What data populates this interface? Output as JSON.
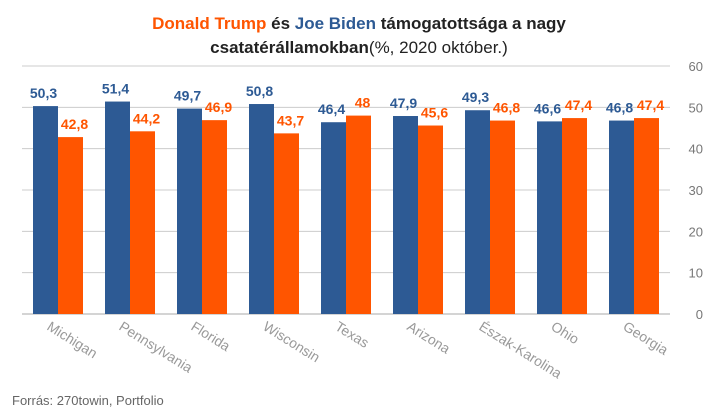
{
  "title": {
    "trump": "Donald Trump",
    "es": " és ",
    "biden": "Joe Biden",
    "rest1": " támogatottsága a nagy",
    "rest2": "csatatérállamokban",
    "rest3": "(%, 2020 október.)"
  },
  "source": "Forrás: 270towin, Portfolio",
  "colors": {
    "biden": "#2d5a94",
    "trump": "#ff5500",
    "grid": "#cccccc",
    "axis_text": "#777777",
    "category_text": "#999999"
  },
  "chart_data": {
    "type": "bar",
    "categories": [
      "Michigan",
      "Pennsylvania",
      "Florida",
      "Wisconsin",
      "Texas",
      "Arizona",
      "Észak-Karolina",
      "Ohio",
      "Georgia"
    ],
    "series": [
      {
        "name": "Joe Biden",
        "color": "#2d5a94",
        "values": [
          50.3,
          51.4,
          49.7,
          50.8,
          46.4,
          47.9,
          49.3,
          46.6,
          46.8
        ],
        "labels": [
          "50,3",
          "51,4",
          "49,7",
          "50,8",
          "46,4",
          "47,9",
          "49,3",
          "46,6",
          "46,8"
        ]
      },
      {
        "name": "Donald Trump",
        "color": "#ff5500",
        "values": [
          42.8,
          44.2,
          46.9,
          43.7,
          48,
          45.6,
          46.8,
          47.4,
          47.4
        ],
        "labels": [
          "42,8",
          "44,2",
          "46,9",
          "43,7",
          "48",
          "45,6",
          "46,8",
          "47,4",
          "47,4"
        ]
      }
    ],
    "ylim": [
      0,
      60
    ],
    "yticks": [
      "0",
      "10",
      "20",
      "30",
      "40",
      "50",
      "60"
    ],
    "ytick_values": [
      0,
      10,
      20,
      30,
      40,
      50,
      60
    ],
    "yaxis_position": "right",
    "grid": true
  }
}
